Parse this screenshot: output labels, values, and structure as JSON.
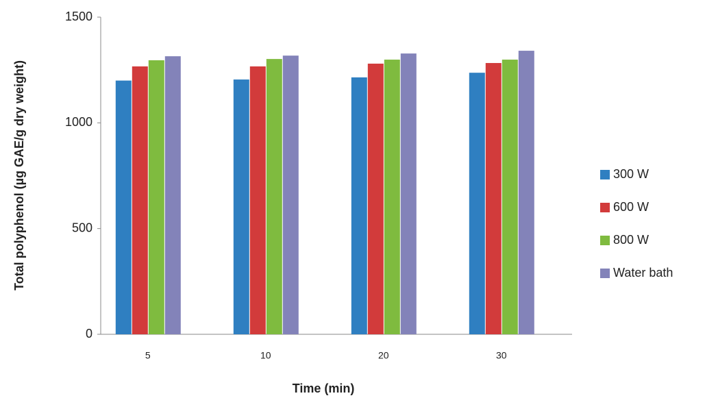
{
  "chart_data": {
    "type": "bar",
    "x_label": "Time (min)",
    "y_label": "Total polyphenol (µg GAE/g dry weight)",
    "categories": [
      "5",
      "10",
      "20",
      "30"
    ],
    "series": [
      {
        "name": "300 W",
        "color": "#2f7fc1",
        "values": [
          1200,
          1205,
          1215,
          1237
        ]
      },
      {
        "name": "600 W",
        "color": "#d23b3b",
        "values": [
          1267,
          1267,
          1280,
          1283
        ]
      },
      {
        "name": "800 W",
        "color": "#7fbb3f",
        "values": [
          1296,
          1302,
          1299,
          1299
        ]
      },
      {
        "name": "Water bath",
        "color": "#8383b9",
        "values": [
          1315,
          1318,
          1328,
          1341
        ]
      }
    ],
    "ylim": [
      0,
      1500
    ],
    "yticks": [
      0,
      500,
      1000,
      1500
    ],
    "grid": false,
    "legend": "right"
  }
}
